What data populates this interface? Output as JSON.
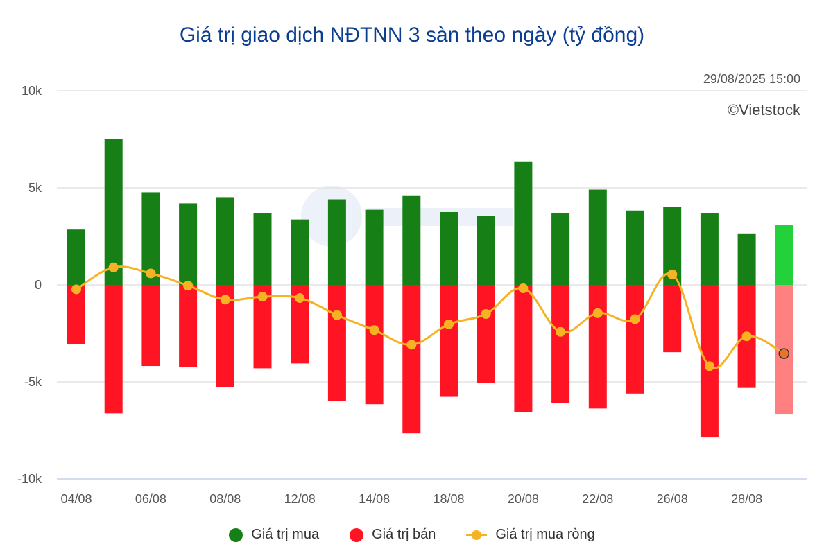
{
  "header": {
    "title": "Giá trị giao dịch NĐTNN 3 sàn theo ngày (tỷ đồng)",
    "timestamp": "29/08/2025 15:00",
    "copyright": "©Vietstock"
  },
  "colors": {
    "buy": "#168016",
    "sell": "#ff1424",
    "buy_highlight": "#23d23a",
    "sell_highlight": "#ff8080",
    "net": "#f5b324",
    "net_last_marker": "#e8742a",
    "grid": "#e3e3e3",
    "title": "#0b3d91"
  },
  "legend": {
    "buy_label": "Giá trị mua",
    "sell_label": "Giá trị bán",
    "net_label": "Giá trị mua ròng"
  },
  "chart_data": {
    "type": "bar",
    "title": "Giá trị giao dịch NĐTNN 3 sàn theo ngày (tỷ đồng)",
    "ylim": [
      -10000,
      10000
    ],
    "yticks": [
      10000,
      5000,
      0,
      -5000,
      -10000
    ],
    "ytick_labels": [
      "10k",
      "5k",
      "0",
      "-5k",
      "-10k"
    ],
    "categories": [
      "04/08",
      "05/08",
      "06/08",
      "07/08",
      "08/08",
      "11/08",
      "12/08",
      "13/08",
      "14/08",
      "15/08",
      "18/08",
      "19/08",
      "20/08",
      "21/08",
      "22/08",
      "25/08",
      "26/08",
      "27/08",
      "28/08",
      "29/08"
    ],
    "x_tick_labels": [
      "04/08",
      "",
      "06/08",
      "",
      "08/08",
      "",
      "12/08",
      "",
      "14/08",
      "",
      "18/08",
      "",
      "20/08",
      "",
      "22/08",
      "",
      "26/08",
      "",
      "28/08",
      ""
    ],
    "grid": true,
    "legend_position": "bottom",
    "series": [
      {
        "name": "Giá trị mua",
        "type": "bar",
        "values": [
          2850,
          7500,
          4770,
          4200,
          4520,
          3690,
          3370,
          4410,
          3870,
          4580,
          3750,
          3560,
          6330,
          3690,
          4910,
          3830,
          4010,
          3690,
          2650,
          3080
        ]
      },
      {
        "name": "Giá trị bán",
        "type": "bar",
        "values": [
          -3070,
          -6620,
          -4180,
          -4240,
          -5270,
          -4300,
          -4050,
          -5980,
          -6150,
          -7650,
          -5770,
          -5060,
          -6560,
          -6080,
          -6370,
          -5600,
          -3470,
          -7860,
          -5310,
          -6680
        ]
      },
      {
        "name": "Giá trị mua ròng",
        "type": "line",
        "values": [
          -230,
          900,
          590,
          -40,
          -760,
          -610,
          -680,
          -1560,
          -2330,
          -3080,
          -2030,
          -1500,
          -180,
          -2420,
          -1460,
          -1770,
          540,
          -4190,
          -2650,
          -3540
        ]
      }
    ]
  }
}
